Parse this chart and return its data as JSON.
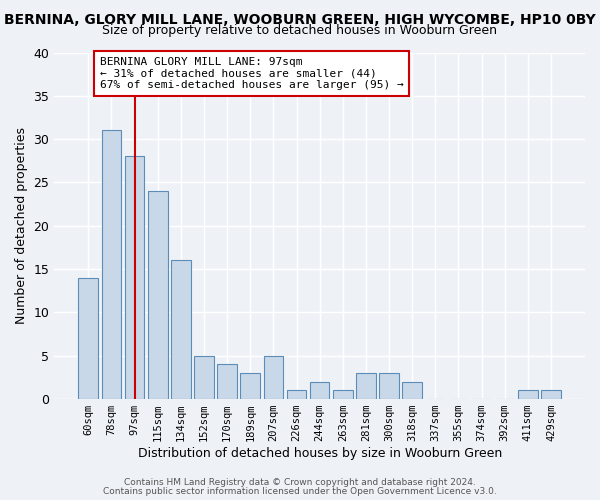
{
  "title": "BERNINA, GLORY MILL LANE, WOOBURN GREEN, HIGH WYCOMBE, HP10 0BY",
  "subtitle": "Size of property relative to detached houses in Wooburn Green",
  "xlabel": "Distribution of detached houses by size in Wooburn Green",
  "ylabel": "Number of detached properties",
  "bar_labels": [
    "60sqm",
    "78sqm",
    "97sqm",
    "115sqm",
    "134sqm",
    "152sqm",
    "170sqm",
    "189sqm",
    "207sqm",
    "226sqm",
    "244sqm",
    "263sqm",
    "281sqm",
    "300sqm",
    "318sqm",
    "337sqm",
    "355sqm",
    "374sqm",
    "392sqm",
    "411sqm",
    "429sqm"
  ],
  "bar_values": [
    14,
    31,
    28,
    24,
    16,
    5,
    4,
    3,
    5,
    1,
    2,
    1,
    3,
    3,
    2,
    0,
    0,
    0,
    0,
    1,
    1
  ],
  "bar_color": "#c8d8e8",
  "bar_edge_color": "#5b8db8",
  "marker_index": 2,
  "marker_line_color": "#cc0000",
  "annotation_text": "BERNINA GLORY MILL LANE: 97sqm\n← 31% of detached houses are smaller (44)\n67% of semi-detached houses are larger (95) →",
  "annotation_box_color": "#ffffff",
  "annotation_box_edge": "#cc0000",
  "ylim": [
    0,
    40
  ],
  "yticks": [
    0,
    5,
    10,
    15,
    20,
    25,
    30,
    35,
    40
  ],
  "footer1": "Contains HM Land Registry data © Crown copyright and database right 2024.",
  "footer2": "Contains public sector information licensed under the Open Government Licence v3.0.",
  "bg_color": "#eef2f7",
  "plot_bg_color": "#eef2f7"
}
